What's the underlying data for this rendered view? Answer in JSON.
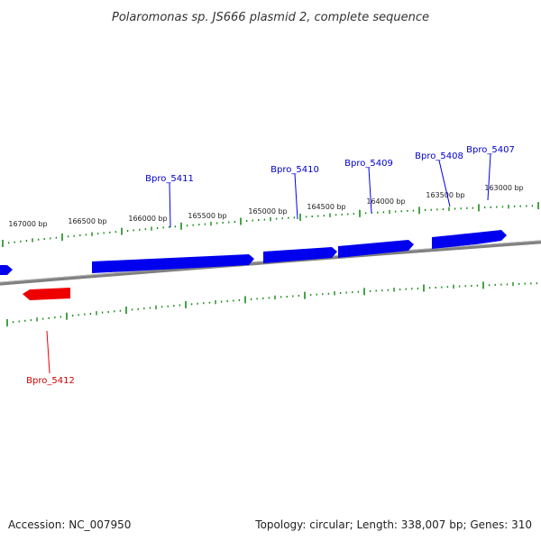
{
  "title": "Polaromonas sp. JS666 plasmid 2, complete sequence",
  "footer": {
    "accession": "Accession: NC_007950",
    "summary": "Topology: circular; Length: 338,007 bp; Genes: 310"
  },
  "colors": {
    "forward_gene": "#0000ee",
    "reverse_gene": "#ee0000",
    "tick": "#1a8a1a",
    "backbone": "#808080"
  },
  "ticks": [
    {
      "label": "167000 bp"
    },
    {
      "label": "166500 bp"
    },
    {
      "label": "166000 bp"
    },
    {
      "label": "165500 bp"
    },
    {
      "label": "165000 bp"
    },
    {
      "label": "164500 bp"
    },
    {
      "label": "164000 bp"
    },
    {
      "label": "163500 bp"
    },
    {
      "label": "163000 bp"
    }
  ],
  "genes": [
    {
      "name": "Bpro_5411",
      "strand": "forward"
    },
    {
      "name": "Bpro_5410",
      "strand": "forward"
    },
    {
      "name": "Bpro_5409",
      "strand": "forward"
    },
    {
      "name": "Bpro_5408",
      "strand": "forward"
    },
    {
      "name": "Bpro_5407",
      "strand": "forward"
    },
    {
      "name": "Bpro_5412",
      "strand": "reverse"
    }
  ]
}
